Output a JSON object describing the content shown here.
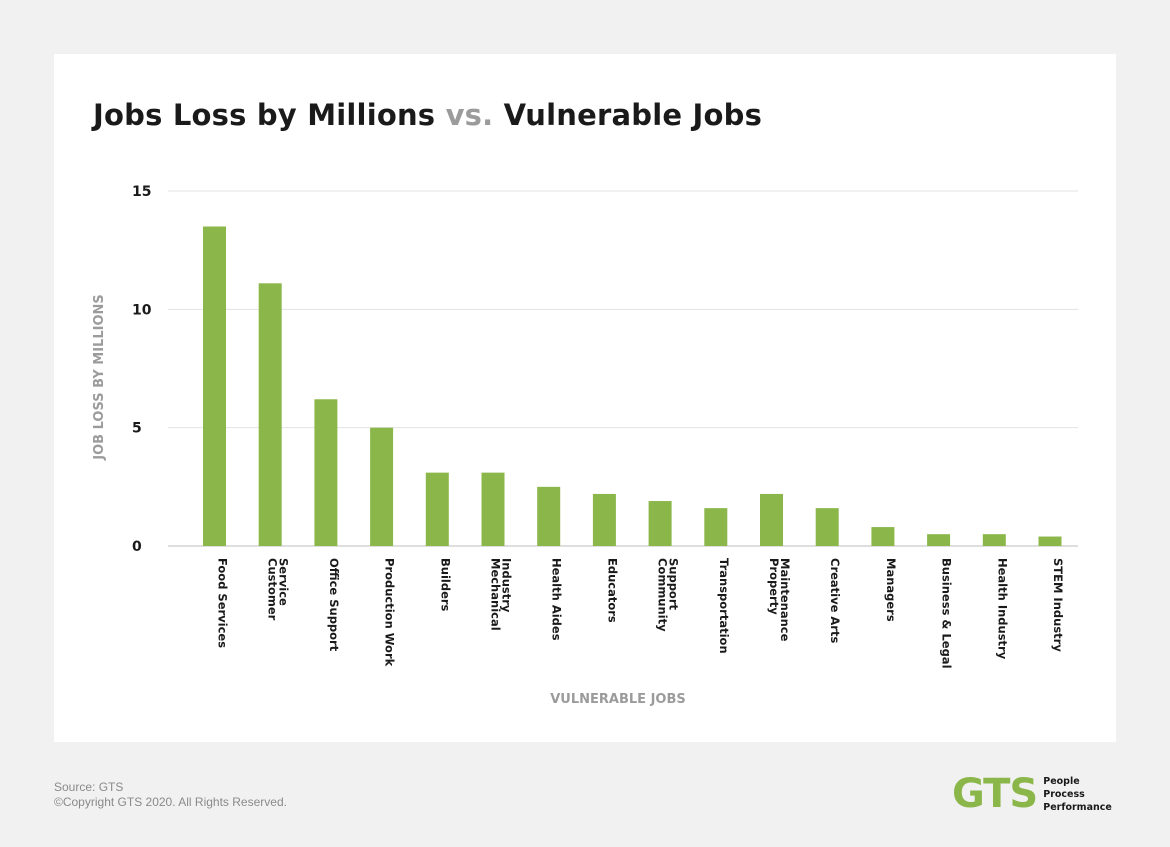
{
  "title": {
    "main": "Jobs Loss by Millions",
    "vs": "vs.",
    "end": "Vulnerable Jobs"
  },
  "footer": {
    "source": "Source: GTS",
    "copyright": "©Copyright GTS 2020. All Rights Reserved."
  },
  "logo": {
    "mark": "GTS",
    "tag1": "People",
    "tag2": "Process",
    "tag3": "Performance"
  },
  "colors": {
    "bar": "#8bb74a",
    "grid": "#e3e3e3",
    "axis": "#bdbdbd",
    "label": "#1a1a1a",
    "muted": "#9b9b9b"
  },
  "chart_data": {
    "type": "bar",
    "xlabel": "VULNERABLE JOBS",
    "ylabel": "JOB LOSS BY MILLIONS",
    "ylim": [
      0,
      15
    ],
    "yticks": [
      0,
      5,
      10,
      15
    ],
    "grid": true,
    "categories": [
      [
        "Food Services"
      ],
      [
        "Customer",
        "Service"
      ],
      [
        "Office Support"
      ],
      [
        "Production Work"
      ],
      [
        "Builders"
      ],
      [
        "Mechanical",
        "Industry"
      ],
      [
        "Health Aides"
      ],
      [
        "Educators"
      ],
      [
        "Community",
        "Support"
      ],
      [
        "Transportation"
      ],
      [
        "Property",
        "Maintenance"
      ],
      [
        "Creative Arts"
      ],
      [
        "Managers"
      ],
      [
        "Business & Legal"
      ],
      [
        "Health Industry"
      ],
      [
        "STEM Industry"
      ]
    ],
    "values": [
      13.5,
      11.1,
      6.2,
      5.0,
      3.1,
      3.1,
      2.5,
      2.2,
      1.9,
      1.6,
      2.2,
      1.6,
      0.8,
      0.5,
      0.5,
      0.4
    ]
  }
}
